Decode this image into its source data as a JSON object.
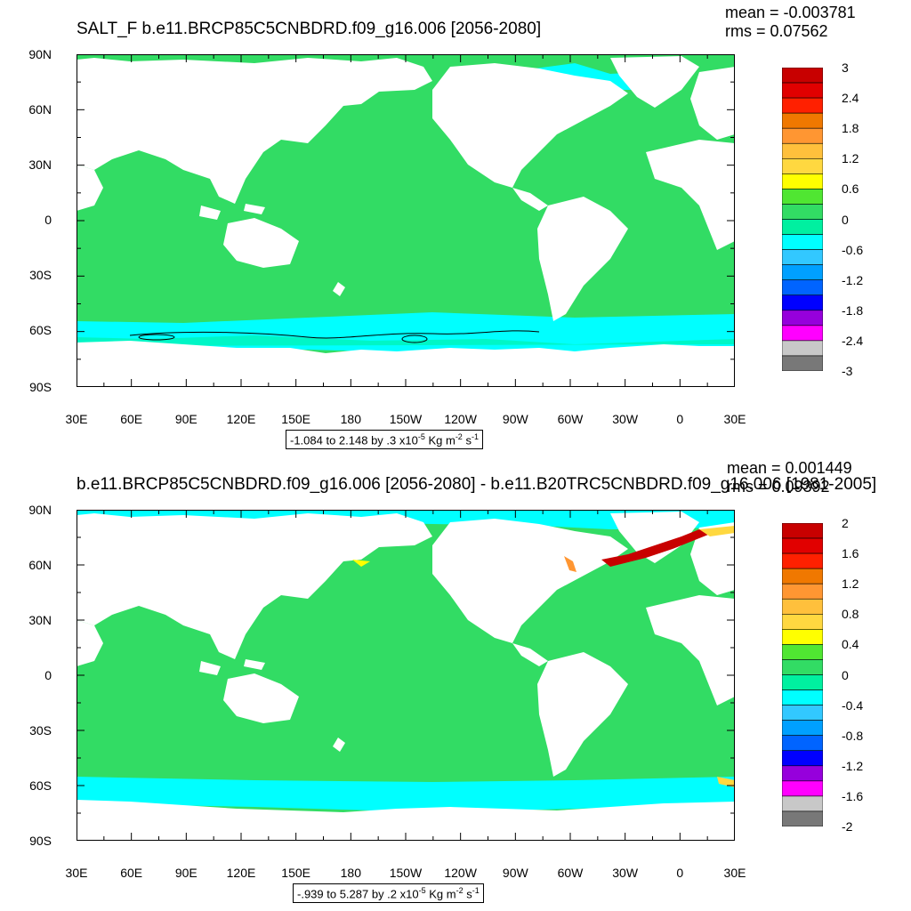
{
  "panel1": {
    "title": "SALT_F b.e11.BRCP85C5CNBDRD.f09_g16.006 [2056-2080]",
    "mean": "mean = -0.003781",
    "rms": "rms = 0.07562",
    "caption_pre": "-1.084 to 2.148 by .3 x10",
    "caption_exp": "-5",
    "caption_unit": " Kg m",
    "caption_exp2": "-2",
    "caption_s": " s",
    "caption_exp3": "-1",
    "colorbar_labels": [
      "3",
      "2.4",
      "1.8",
      "1.2",
      "0.6",
      "0",
      "-0.6",
      "-1.2",
      "-1.8",
      "-2.4",
      "-3"
    ]
  },
  "panel2": {
    "title": "b.e11.BRCP85C5CNBDRD.f09_g16.006 [2056-2080] - b.e11.B20TRC5CNBDRD.f09_g16.006 [1981-2005]",
    "mean": "mean = 0.001449",
    "rms": "rms = 0.09392",
    "caption_pre": "-.939 to 5.287 by .2 x10",
    "caption_exp": "-5",
    "caption_unit": " Kg m",
    "caption_exp2": "-2",
    "caption_s": " s",
    "caption_exp3": "-1",
    "colorbar_labels": [
      "2",
      "1.6",
      "1.2",
      "0.8",
      "0.4",
      "0",
      "-0.4",
      "-0.8",
      "-1.2",
      "-1.6",
      "-2"
    ]
  },
  "lat_labels": [
    "90N",
    "60N",
    "30N",
    "0",
    "30S",
    "60S",
    "90S"
  ],
  "lon_labels": [
    "30E",
    "60E",
    "90E",
    "120E",
    "150E",
    "180",
    "150W",
    "120W",
    "90W",
    "60W",
    "30W",
    "0",
    "30E"
  ],
  "colors": {
    "palette": [
      "#c80000",
      "#e10000",
      "#ff2000",
      "#f07800",
      "#ff9632",
      "#ffc03c",
      "#ffd840",
      "#ffff00",
      "#50e632",
      "#32dc64",
      "#00f0a0",
      "#00ffff",
      "#32c8ff",
      "#00a0ff",
      "#0064ff",
      "#0000ff",
      "#9600dc",
      "#ff00ff",
      "#c8c8c8",
      "#787878"
    ],
    "ocean": "#32dc64",
    "land": "#ffffff"
  }
}
